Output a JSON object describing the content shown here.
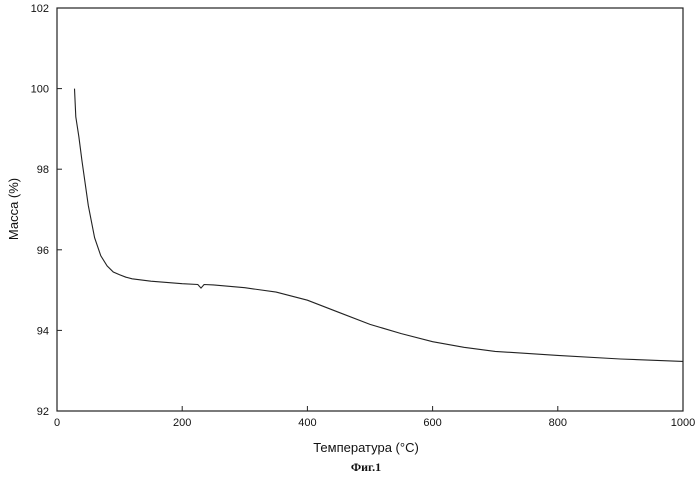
{
  "chart_data": {
    "type": "line",
    "xlabel": "Температура (°C)",
    "ylabel": "Масса (%)",
    "caption": "Фиг.1",
    "xlim": [
      0,
      1000
    ],
    "ylim": [
      92,
      102
    ],
    "x_ticks": [
      0,
      200,
      400,
      600,
      800,
      1000
    ],
    "x_tick_labels": [
      "0",
      "200",
      "400",
      "600",
      "800",
      "1000"
    ],
    "y_ticks": [
      92,
      94,
      96,
      98,
      100,
      102
    ],
    "y_tick_labels": [
      "92",
      "94",
      "96",
      "98",
      "100",
      "102"
    ],
    "grid": false,
    "line_color": "#222222",
    "series": [
      {
        "x": [
          28,
          30,
          35,
          40,
          50,
          60,
          70,
          80,
          90,
          100,
          110,
          120,
          150,
          200,
          225,
          230,
          235,
          250,
          300,
          350,
          400,
          450,
          500,
          550,
          600,
          650,
          700,
          800,
          900,
          1000
        ],
        "y": [
          100.0,
          99.3,
          98.8,
          98.2,
          97.1,
          96.3,
          95.85,
          95.6,
          95.45,
          95.38,
          95.32,
          95.28,
          95.22,
          95.16,
          95.14,
          95.05,
          95.14,
          95.13,
          95.06,
          94.95,
          94.75,
          94.45,
          94.15,
          93.92,
          93.72,
          93.58,
          93.48,
          93.38,
          93.29,
          93.23
        ]
      }
    ]
  }
}
